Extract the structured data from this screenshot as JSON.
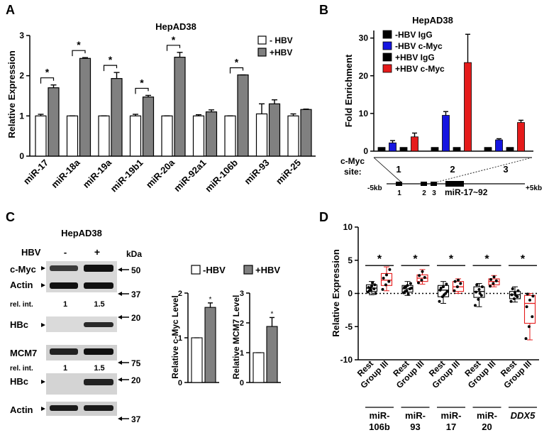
{
  "panels": {
    "A": {
      "label": "A",
      "title": "HepAD38",
      "ylabel": "Relative Expression",
      "legend": [
        "- HBV",
        "+HBV"
      ],
      "sig_marker": "*"
    },
    "B": {
      "label": "B",
      "title": "HepAD38",
      "ylabel": "Fold Enrichment",
      "site_label_1": "c-Myc",
      "site_label_2": "site:",
      "sites": [
        "1",
        "2",
        "3"
      ],
      "map_left": "-5kb",
      "map_right": "+5kb",
      "map_sites": [
        "1",
        "2",
        "3"
      ],
      "gene": "miR-17~92"
    },
    "C": {
      "label": "C",
      "title": "HepAD38",
      "hbv_label": "HBV",
      "hbv_minus": "-",
      "hbv_plus": "+",
      "kda": "kDa",
      "blot_labels": [
        "c-Myc",
        "Actin",
        "HBc",
        "MCM7",
        "HBc",
        "Actin"
      ],
      "markers": [
        "50",
        "37",
        "20",
        "75",
        "20",
        "37"
      ],
      "rel_int_label": "rel. int.",
      "rel_int_1": [
        "1",
        "1.5"
      ],
      "rel_int_2": [
        "1",
        "1.5"
      ],
      "legend": [
        "-HBV",
        "+HBV"
      ],
      "bar1_ylabel": "Relative c-Myc Level",
      "bar2_ylabel": "Relative MCM7 Level",
      "sig_marker": "*"
    },
    "D": {
      "label": "D",
      "ylabel": "Relative Expression",
      "sig_marker": "*",
      "group_labels": [
        "Rest",
        "Group III"
      ],
      "genes": [
        {
          "line1": "miR-",
          "line2": "106b"
        },
        {
          "line1": "miR-",
          "line2": "93"
        },
        {
          "line1": "miR-",
          "line2": "17"
        },
        {
          "line1": "miR-",
          "line2": "20"
        },
        {
          "line1": "DDX5",
          "line2": ""
        }
      ]
    }
  },
  "colors": {
    "minus_hbv": "#ffffff",
    "plus_hbv": "#808080",
    "igg": "#000000",
    "cmyc_minus": "#1515e0",
    "cmyc_plus": "#e51b1b",
    "box_rest": "#000000",
    "box_group": "#e51b1b"
  },
  "chart_data": [
    {
      "panel": "A",
      "type": "bar",
      "title": "HepAD38",
      "ylabel": "Relative Expression",
      "categories": [
        "miR-17",
        "miR-18a",
        "miR-19a",
        "miR-19b1",
        "miR-20a",
        "miR-92a1",
        "miR-106b",
        "miR-93",
        "miR-25"
      ],
      "series": [
        {
          "name": "- HBV",
          "values": [
            1.0,
            1.0,
            1.0,
            1.0,
            1.0,
            1.0,
            1.0,
            1.05,
            1.0
          ],
          "errors": [
            0.04,
            0.0,
            0.0,
            0.04,
            0.0,
            0.03,
            0.0,
            0.25,
            0.05
          ]
        },
        {
          "name": "+HBV",
          "values": [
            1.7,
            2.43,
            1.93,
            1.47,
            2.46,
            1.1,
            2.02,
            1.3,
            1.16
          ],
          "errors": [
            0.07,
            0.02,
            0.15,
            0.04,
            0.12,
            0.05,
            0.0,
            0.1,
            0.01
          ]
        }
      ],
      "significant": [
        true,
        true,
        true,
        true,
        true,
        false,
        true,
        false,
        false
      ],
      "ylim": [
        0,
        3
      ],
      "yticks": [
        0,
        1,
        2,
        3
      ]
    },
    {
      "panel": "B",
      "type": "bar",
      "title": "HepAD38",
      "ylabel": "Fold Enrichment",
      "categories": [
        "1",
        "2",
        "3"
      ],
      "series": [
        {
          "name": "-HBV IgG",
          "values": [
            1.0,
            1.0,
            1.0
          ],
          "errors": [
            0.0,
            0.0,
            0.0
          ]
        },
        {
          "name": "-HBV c-Myc",
          "values": [
            2.2,
            9.5,
            3.0
          ],
          "errors": [
            0.6,
            1.0,
            0.3
          ]
        },
        {
          "name": "+HBV IgG",
          "values": [
            1.0,
            1.0,
            1.0
          ],
          "errors": [
            0.0,
            0.0,
            0.0
          ]
        },
        {
          "name": "+HBV c-Myc",
          "values": [
            3.8,
            23.5,
            7.6
          ],
          "errors": [
            1.0,
            7.5,
            0.6
          ]
        }
      ],
      "ylim": [
        0,
        32
      ],
      "yticks": [
        0,
        10,
        20,
        30
      ]
    },
    {
      "panel": "C-left",
      "type": "bar",
      "ylabel": "Relative c-Myc Level",
      "categories": [
        "-HBV",
        "+HBV"
      ],
      "values": [
        1.0,
        1.68
      ],
      "errors": [
        0.0,
        0.1
      ],
      "ylim": [
        0,
        2
      ],
      "yticks": [
        0,
        1,
        2
      ]
    },
    {
      "panel": "C-right",
      "type": "bar",
      "ylabel": "Relative MCM7 Level",
      "categories": [
        "-HBV",
        "+HBV"
      ],
      "values": [
        1.0,
        1.88
      ],
      "errors": [
        0.0,
        0.3
      ],
      "ylim": [
        0,
        3
      ],
      "yticks": [
        0,
        1,
        2,
        3
      ]
    },
    {
      "panel": "D",
      "type": "box",
      "ylabel": "Relative Expression",
      "ylim": [
        -10,
        10
      ],
      "yticks": [
        -10,
        -5,
        0,
        5,
        10
      ],
      "boxes": [
        {
          "gene": "miR-106b",
          "group": "Rest",
          "q1": 0.3,
          "median": 0.8,
          "q3": 1.3,
          "min": -0.2,
          "max": 1.8,
          "points": [
            0.2,
            0.5,
            0.7,
            0.9,
            1.1,
            1.3,
            0.4,
            1.6,
            0.0,
            0.8
          ]
        },
        {
          "gene": "miR-106b",
          "group": "Group III",
          "q1": 1.2,
          "median": 2.0,
          "q3": 3.0,
          "min": 0.4,
          "max": 4.0,
          "points": [
            0.6,
            1.3,
            1.8,
            2.3,
            2.8,
            3.6
          ]
        },
        {
          "gene": "miR-93",
          "group": "Rest",
          "q1": 0.2,
          "median": 0.7,
          "q3": 1.2,
          "min": -0.3,
          "max": 1.8,
          "points": [
            0.1,
            0.4,
            0.7,
            0.9,
            1.2,
            1.5,
            0.3,
            -0.1,
            0.8,
            1.0
          ]
        },
        {
          "gene": "miR-93",
          "group": "Group III",
          "q1": 1.8,
          "median": 2.3,
          "q3": 2.8,
          "min": 1.4,
          "max": 3.6,
          "points": [
            1.6,
            2.0,
            2.4,
            2.7,
            3.3
          ]
        },
        {
          "gene": "miR-17",
          "group": "Rest",
          "q1": -0.5,
          "median": 0.5,
          "q3": 1.2,
          "min": -1.5,
          "max": 1.8,
          "points": [
            -1.2,
            -0.5,
            0.0,
            0.5,
            1.0,
            1.4,
            0.8,
            -0.2,
            0.3
          ]
        },
        {
          "gene": "miR-17",
          "group": "Group III",
          "q1": 0.3,
          "median": 1.0,
          "q3": 1.8,
          "min": 0.0,
          "max": 2.2,
          "points": [
            0.4,
            1.0,
            1.5,
            1.8,
            2.0
          ]
        },
        {
          "gene": "miR-20",
          "group": "Rest",
          "q1": -0.6,
          "median": 0.3,
          "q3": 1.0,
          "min": -2.0,
          "max": 1.5,
          "points": [
            -1.8,
            -0.9,
            -0.3,
            0.2,
            0.6,
            1.0,
            1.3,
            0.0
          ]
        },
        {
          "gene": "miR-20",
          "group": "Group III",
          "q1": 1.3,
          "median": 1.8,
          "q3": 2.2,
          "min": 1.0,
          "max": 2.7,
          "points": [
            1.1,
            1.5,
            1.9,
            2.1,
            2.5
          ]
        },
        {
          "gene": "DDX5",
          "group": "Rest",
          "q1": -0.8,
          "median": -0.2,
          "q3": 0.3,
          "min": -1.3,
          "max": 1.0,
          "points": [
            -1.2,
            -0.8,
            -0.5,
            -0.2,
            0.1,
            0.4,
            0.7,
            -0.3
          ]
        },
        {
          "gene": "DDX5",
          "group": "Group III",
          "q1": -4.5,
          "median": -1.5,
          "q3": -0.3,
          "min": -7.0,
          "max": 0.0,
          "points": [
            -6.8,
            -5.0,
            -3.5,
            -2.0,
            -1.0,
            -0.4,
            -0.1
          ]
        }
      ],
      "significant": [
        true,
        true,
        true,
        true,
        true
      ]
    }
  ]
}
